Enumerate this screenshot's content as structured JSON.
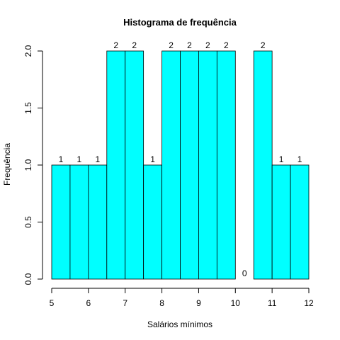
{
  "chart_data": {
    "type": "bar",
    "title": "Histograma de frequência",
    "xlabel": "Salários mínimos",
    "ylabel": "Frequência",
    "bin_edges": [
      5.0,
      5.5,
      6.0,
      6.5,
      7.0,
      7.5,
      8.0,
      8.5,
      9.0,
      9.5,
      10.0,
      10.5,
      11.0,
      11.5,
      12.0
    ],
    "values": [
      1,
      1,
      1,
      2,
      2,
      1,
      2,
      2,
      2,
      2,
      0,
      2,
      1,
      1
    ],
    "data_labels": [
      "1",
      "1",
      "1",
      "2",
      "2",
      "1",
      "2",
      "2",
      "2",
      "2",
      "0",
      "2",
      "1",
      "1"
    ],
    "xlim": [
      5,
      12
    ],
    "ylim": [
      0,
      2
    ],
    "x_ticks": [
      "5",
      "6",
      "7",
      "8",
      "9",
      "10",
      "11",
      "12"
    ],
    "y_ticks": [
      "0.0",
      "0.5",
      "1.0",
      "1.5",
      "2.0"
    ],
    "bar_color": "#00ffff",
    "grid": false,
    "legend": "none"
  }
}
